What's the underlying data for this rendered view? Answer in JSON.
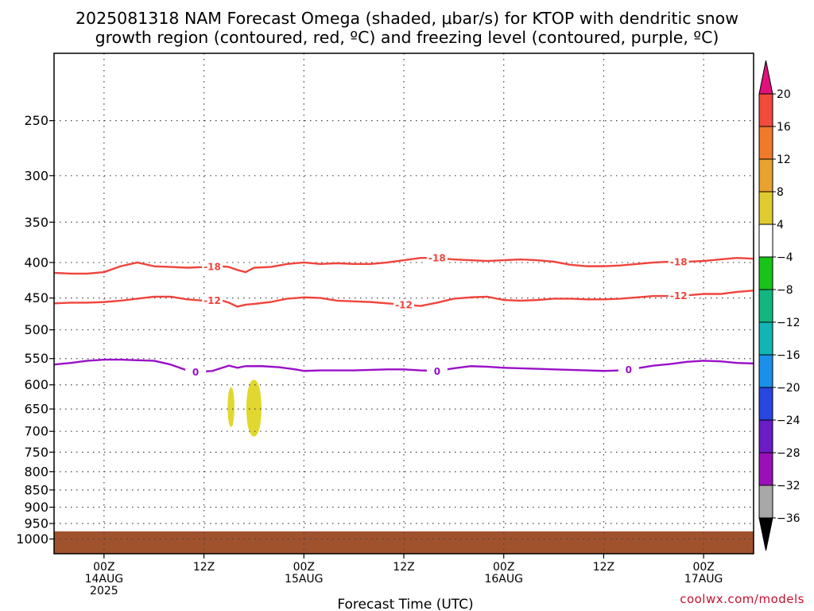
{
  "chart_data": {
    "type": "contour",
    "title_line1": "2025081318 NAM Forecast Omega (shaded, μbar/s) for KTOP with dendritic snow",
    "title_line2": "growth region (contoured, red, ºC) and freezing level (contoured, purple, ºC)",
    "xlabel": "Forecast Time (UTC)",
    "credit": "coolwx.com/models",
    "x_range_hours": [
      -6,
      78
    ],
    "x_ticks": [
      {
        "hour": 0,
        "lines": [
          "00Z",
          "14AUG",
          "2025"
        ]
      },
      {
        "hour": 12,
        "lines": [
          "12Z"
        ]
      },
      {
        "hour": 24,
        "lines": [
          "00Z",
          "15AUG"
        ]
      },
      {
        "hour": 36,
        "lines": [
          "12Z"
        ]
      },
      {
        "hour": 48,
        "lines": [
          "00Z",
          "16AUG"
        ]
      },
      {
        "hour": 60,
        "lines": [
          "12Z"
        ]
      },
      {
        "hour": 72,
        "lines": [
          "00Z",
          "17AUG"
        ]
      }
    ],
    "y_axis": {
      "units": "hPa",
      "scale": "log",
      "range": [
        200,
        1050
      ],
      "ticks": [
        250,
        300,
        350,
        400,
        450,
        500,
        550,
        600,
        650,
        700,
        750,
        800,
        850,
        900,
        950,
        1000
      ]
    },
    "grid": true,
    "ground_color": "#a0522d",
    "ground_top_hpa": 975,
    "colorbar": {
      "labels": [
        "20",
        "16",
        "12",
        "8",
        "4",
        "−4",
        "−8",
        "−12",
        "−16",
        "−20",
        "−24",
        "−28",
        "−32",
        "−36"
      ],
      "over_color": "#e0117a",
      "under_color": "#000000",
      "colors": [
        "#f24a3b",
        "#f07a2b",
        "#e9a12f",
        "#e0cc30",
        "#ffffff",
        "#18c418",
        "#12b77f",
        "#11b5b5",
        "#1b90e9",
        "#2846e0",
        "#6a1cc8",
        "#9a10b8",
        "#a8a8a8"
      ]
    },
    "series": [
      {
        "name": "-18",
        "color": "#f0443c",
        "points": [
          [
            -6,
            414
          ],
          [
            -4,
            415
          ],
          [
            -2,
            415
          ],
          [
            0,
            413
          ],
          [
            2,
            405
          ],
          [
            4,
            400
          ],
          [
            6,
            405
          ],
          [
            8,
            406
          ],
          [
            10,
            407
          ],
          [
            12,
            406
          ],
          [
            14,
            405
          ],
          [
            15,
            406
          ],
          [
            16,
            410
          ],
          [
            17,
            413
          ],
          [
            18,
            407
          ],
          [
            20,
            406
          ],
          [
            22,
            402
          ],
          [
            24,
            400
          ],
          [
            26,
            402
          ],
          [
            28,
            401
          ],
          [
            30,
            402
          ],
          [
            32,
            402
          ],
          [
            34,
            400
          ],
          [
            36,
            397
          ],
          [
            38,
            394
          ],
          [
            40,
            394
          ],
          [
            42,
            396
          ],
          [
            44,
            397
          ],
          [
            46,
            398
          ],
          [
            48,
            397
          ],
          [
            50,
            396
          ],
          [
            52,
            397
          ],
          [
            54,
            399
          ],
          [
            56,
            403
          ],
          [
            58,
            405
          ],
          [
            60,
            405
          ],
          [
            62,
            404
          ],
          [
            64,
            402
          ],
          [
            66,
            400
          ],
          [
            68,
            399
          ],
          [
            70,
            399
          ],
          [
            72,
            398
          ],
          [
            74,
            396
          ],
          [
            76,
            394
          ],
          [
            78,
            395
          ]
        ],
        "labels_at": [
          13,
          40,
          69
        ]
      },
      {
        "name": "-12",
        "color": "#f0443c",
        "points": [
          [
            -6,
            458
          ],
          [
            -4,
            457
          ],
          [
            -2,
            457
          ],
          [
            0,
            456
          ],
          [
            2,
            454
          ],
          [
            4,
            451
          ],
          [
            6,
            448
          ],
          [
            8,
            448
          ],
          [
            10,
            452
          ],
          [
            12,
            454
          ],
          [
            14,
            453
          ],
          [
            15,
            457
          ],
          [
            16,
            463
          ],
          [
            17,
            460
          ],
          [
            18,
            459
          ],
          [
            20,
            456
          ],
          [
            22,
            451
          ],
          [
            24,
            449
          ],
          [
            26,
            450
          ],
          [
            28,
            454
          ],
          [
            30,
            455
          ],
          [
            32,
            456
          ],
          [
            34,
            458
          ],
          [
            36,
            460
          ],
          [
            38,
            462
          ],
          [
            40,
            457
          ],
          [
            42,
            451
          ],
          [
            44,
            449
          ],
          [
            46,
            448
          ],
          [
            48,
            453
          ],
          [
            50,
            454
          ],
          [
            52,
            453
          ],
          [
            54,
            451
          ],
          [
            56,
            451
          ],
          [
            58,
            452
          ],
          [
            60,
            452
          ],
          [
            62,
            451
          ],
          [
            64,
            449
          ],
          [
            66,
            447
          ],
          [
            68,
            447
          ],
          [
            70,
            446
          ],
          [
            72,
            444
          ],
          [
            74,
            444
          ],
          [
            76,
            441
          ],
          [
            78,
            439
          ]
        ],
        "labels_at": [
          13,
          36,
          69
        ]
      },
      {
        "name": "0",
        "color": "#9a10c8",
        "points": [
          [
            -6,
            561
          ],
          [
            -4,
            558
          ],
          [
            -2,
            554
          ],
          [
            0,
            552
          ],
          [
            2,
            552
          ],
          [
            4,
            553
          ],
          [
            6,
            554
          ],
          [
            8,
            561
          ],
          [
            10,
            572
          ],
          [
            11,
            575
          ],
          [
            13,
            573
          ],
          [
            15,
            563
          ],
          [
            16,
            567
          ],
          [
            17,
            564
          ],
          [
            19,
            564
          ],
          [
            21,
            566
          ],
          [
            23,
            570
          ],
          [
            24,
            573
          ],
          [
            26,
            572
          ],
          [
            28,
            572
          ],
          [
            30,
            572
          ],
          [
            32,
            571
          ],
          [
            34,
            570
          ],
          [
            36,
            570
          ],
          [
            38,
            572
          ],
          [
            40,
            573
          ],
          [
            42,
            568
          ],
          [
            44,
            564
          ],
          [
            46,
            565
          ],
          [
            48,
            567
          ],
          [
            50,
            568
          ],
          [
            52,
            569
          ],
          [
            54,
            570
          ],
          [
            56,
            571
          ],
          [
            58,
            572
          ],
          [
            60,
            573
          ],
          [
            62,
            572
          ],
          [
            64,
            568
          ],
          [
            66,
            563
          ],
          [
            68,
            560
          ],
          [
            70,
            556
          ],
          [
            72,
            554
          ],
          [
            74,
            555
          ],
          [
            76,
            558
          ],
          [
            78,
            559
          ]
        ],
        "labels_at": [
          11,
          40,
          63
        ]
      }
    ],
    "shaded_regions": [
      {
        "value_range": [
          4,
          8
        ],
        "color": "#e0d82e",
        "hour_center": 15.25,
        "hour_halfwidth": 0.4,
        "p_top": 605,
        "p_bottom": 690
      },
      {
        "value_range": [
          4,
          8
        ],
        "color": "#e0d82e",
        "hour_center": 18.0,
        "hour_halfwidth": 0.9,
        "p_top": 590,
        "p_bottom": 712
      }
    ]
  }
}
